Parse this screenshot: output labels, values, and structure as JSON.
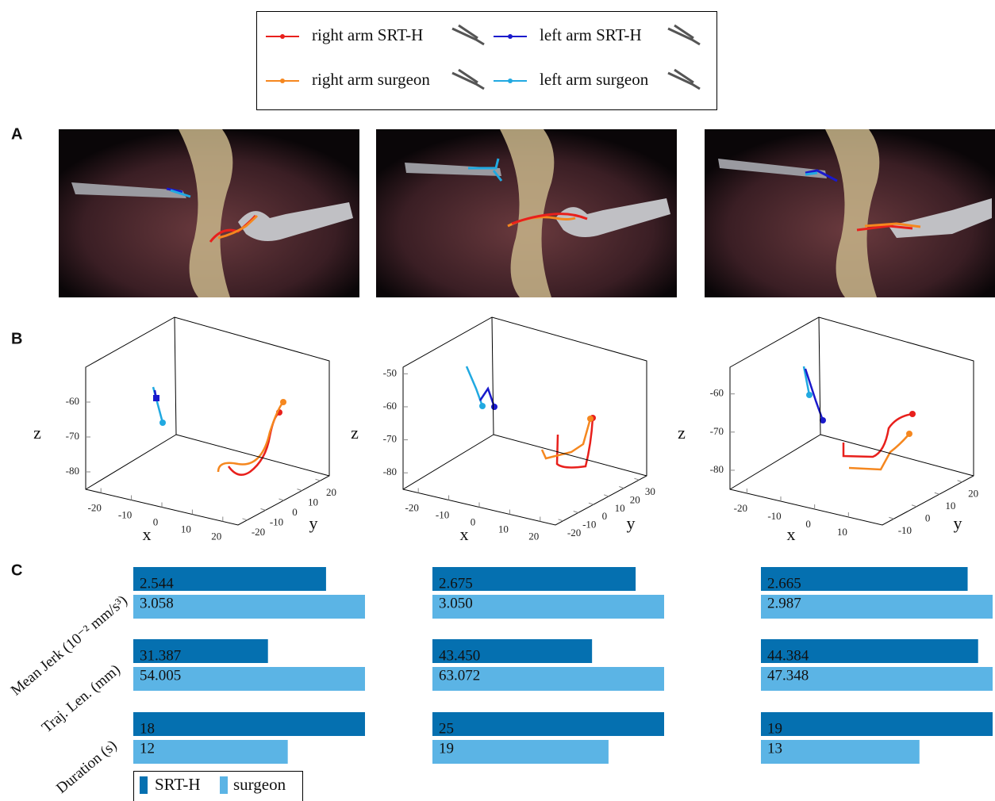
{
  "legend": {
    "entries": [
      {
        "label": "right arm SRT-H",
        "color": "#e8201c"
      },
      {
        "label": "left arm SRT-H",
        "color": "#1a1acc"
      },
      {
        "label": "right arm surgeon",
        "color": "#f5871f"
      },
      {
        "label": "left arm surgeon",
        "color": "#21a9e1"
      }
    ]
  },
  "panel_labels": [
    "A",
    "B",
    "C"
  ],
  "plots_3d": [
    {
      "x_label": "x",
      "y_label": "y",
      "z_label": "z",
      "xlim": [
        -25,
        25
      ],
      "ylim": [
        -25,
        25
      ],
      "zlim": [
        -85,
        -50
      ],
      "xticks": [
        -20,
        -10,
        0,
        10,
        20
      ],
      "yticks": [
        -20,
        -10,
        0,
        10,
        20
      ],
      "zticks": [
        -60,
        -70,
        -80
      ]
    },
    {
      "x_label": "x",
      "y_label": "y",
      "z_label": "z",
      "xlim": [
        -25,
        25
      ],
      "ylim": [
        -25,
        35
      ],
      "zlim": [
        -85,
        -48
      ],
      "xticks": [
        -20,
        -10,
        0,
        10,
        20
      ],
      "yticks": [
        -20,
        -10,
        0,
        10,
        20,
        30
      ],
      "zticks": [
        -50,
        -60,
        -70,
        -80
      ]
    },
    {
      "x_label": "x",
      "y_label": "y",
      "z_label": "z",
      "xlim": [
        -25,
        20
      ],
      "ylim": [
        -15,
        25
      ],
      "zlim": [
        -85,
        -53
      ],
      "xticks": [
        -20,
        -10,
        0,
        10
      ],
      "yticks": [
        -10,
        0,
        10,
        20
      ],
      "zticks": [
        -60,
        -70,
        -80
      ]
    }
  ],
  "chart_data": [
    {
      "type": "barh",
      "categories": [
        "Mean Jerk (10⁻² mm/s³)",
        "Traj. Len. (mm)",
        "Duration (s)"
      ],
      "series": [
        {
          "name": "SRT-H",
          "color": "#0570b0",
          "values": [
            2.544,
            31.387,
            18
          ],
          "value_labels": [
            "2.544",
            "31.387",
            "18"
          ]
        },
        {
          "name": "surgeon",
          "color": "#5bb4e5",
          "values": [
            3.058,
            54.005,
            12
          ],
          "value_labels": [
            "3.058",
            "54.005",
            "12"
          ]
        }
      ]
    },
    {
      "type": "barh",
      "categories": [
        null,
        null,
        null
      ],
      "series": [
        {
          "color": "#0570b0",
          "values": [
            2.675,
            43.45,
            25
          ],
          "value_labels": [
            "2.675",
            "43.450",
            "25"
          ]
        },
        {
          "color": "#5bb4e5",
          "values": [
            3.05,
            63.072,
            19
          ],
          "value_labels": [
            "3.050",
            "63.072",
            "19"
          ]
        }
      ]
    },
    {
      "type": "barh",
      "categories": [
        null,
        null,
        null
      ],
      "series": [
        {
          "color": "#0570b0",
          "values": [
            2.665,
            44.384,
            19
          ],
          "value_labels": [
            "2.665",
            "44.384",
            "19"
          ]
        },
        {
          "color": "#5bb4e5",
          "values": [
            2.987,
            47.348,
            13
          ],
          "value_labels": [
            "2.987",
            "47.348",
            "13"
          ]
        }
      ]
    }
  ]
}
